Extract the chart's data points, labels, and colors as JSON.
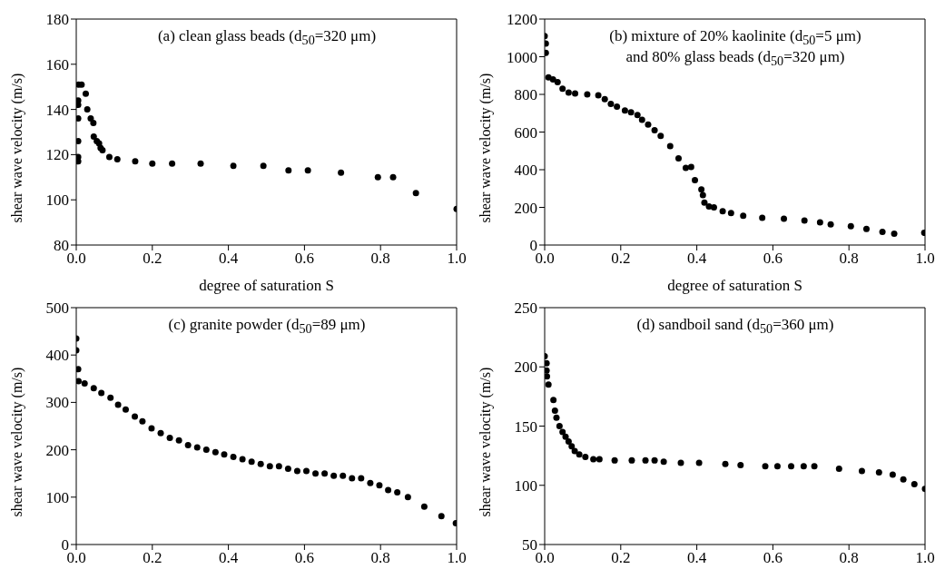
{
  "chart_data": [
    {
      "type": "scatter",
      "ylabel": "shear wave velocity (m/s)",
      "xlabel": "degree of saturation S",
      "annotations": [
        "(a) clean glass beads (d$_{50}$=320 μm)"
      ],
      "color": "#000000",
      "marker": "circle",
      "x": [
        0.006,
        0.014,
        0.005,
        0.005,
        0.005,
        0.005,
        0.005,
        0.005,
        0.025,
        0.029,
        0.038,
        0.045,
        0.046,
        0.054,
        0.06,
        0.064,
        0.069,
        0.087,
        0.108,
        0.155,
        0.2,
        0.252,
        0.327,
        0.413,
        0.492,
        0.558,
        0.609,
        0.696,
        0.793,
        0.833,
        0.893,
        1.0
      ],
      "values": [
        151,
        151,
        144,
        142,
        136,
        126,
        117,
        119,
        147,
        140,
        136,
        134,
        128,
        126,
        125,
        123,
        122,
        119,
        118,
        117,
        116,
        116,
        116,
        115,
        115,
        113,
        113,
        112,
        110,
        110,
        103,
        96
      ],
      "xlim": [
        0,
        1
      ],
      "xticks": [
        {
          "value": 0,
          "label": "0.0"
        },
        {
          "value": 0.2,
          "label": "0.2"
        },
        {
          "value": 0.4,
          "label": "0.4"
        },
        {
          "value": 0.6,
          "label": "0.6"
        },
        {
          "value": 0.8,
          "label": "0.8"
        },
        {
          "value": 1,
          "label": "1.0"
        }
      ],
      "ylim": [
        80,
        180
      ],
      "yticks": [
        80,
        100,
        120,
        140,
        160,
        180
      ]
    },
    {
      "type": "scatter",
      "ylabel": "shear wave velocity (m/s)",
      "xlabel": "degree of saturation S",
      "annotations": [
        "(b) mixture of 20% kaolinite (d$_{50}$=5 μm)\nand 80% glass beads (d$_{50}$=320 μm)"
      ],
      "color": "#000000",
      "marker": "circle",
      "x": [
        0,
        0.003,
        0.003,
        0.01,
        0.022,
        0.034,
        0.047,
        0.063,
        0.08,
        0.112,
        0.141,
        0.158,
        0.174,
        0.19,
        0.211,
        0.227,
        0.244,
        0.256,
        0.272,
        0.289,
        0.305,
        0.33,
        0.352,
        0.371,
        0.385,
        0.395,
        0.412,
        0.416,
        0.42,
        0.432,
        0.445,
        0.468,
        0.49,
        0.522,
        0.572,
        0.629,
        0.683,
        0.724,
        0.752,
        0.805,
        0.846,
        0.888,
        0.919,
        0.998
      ],
      "values": [
        1110,
        1070,
        1020,
        890,
        880,
        865,
        830,
        810,
        805,
        800,
        795,
        775,
        750,
        735,
        715,
        705,
        690,
        665,
        640,
        610,
        580,
        525,
        460,
        410,
        415,
        345,
        295,
        265,
        225,
        205,
        200,
        180,
        170,
        155,
        145,
        140,
        130,
        120,
        110,
        100,
        85,
        70,
        60,
        65
      ],
      "xlim": [
        0,
        1
      ],
      "xticks": [
        {
          "value": 0,
          "label": "0.0"
        },
        {
          "value": 0.2,
          "label": "0.2"
        },
        {
          "value": 0.4,
          "label": "0.4"
        },
        {
          "value": 0.6,
          "label": "0.6"
        },
        {
          "value": 0.8,
          "label": "0.8"
        },
        {
          "value": 1,
          "label": "1.0"
        }
      ],
      "ylim": [
        0,
        1200
      ],
      "yticks": [
        0,
        200,
        400,
        600,
        800,
        1000,
        1200
      ]
    },
    {
      "type": "scatter",
      "ylabel": "shear wave velocity (m/s)",
      "annotations": [
        "(c) granite powder (d$_{50}$=89 μm)"
      ],
      "color": "#000000",
      "marker": "circle",
      "x": [
        0,
        0,
        0.005,
        0.006,
        0.022,
        0.046,
        0.066,
        0.09,
        0.11,
        0.13,
        0.154,
        0.174,
        0.198,
        0.222,
        0.246,
        0.27,
        0.294,
        0.318,
        0.342,
        0.366,
        0.389,
        0.413,
        0.437,
        0.461,
        0.485,
        0.509,
        0.533,
        0.557,
        0.581,
        0.605,
        0.629,
        0.653,
        0.677,
        0.701,
        0.725,
        0.749,
        0.773,
        0.797,
        0.82,
        0.844,
        0.872,
        0.915,
        0.96,
        0.998
      ],
      "values": [
        435,
        410,
        370,
        345,
        340,
        330,
        320,
        310,
        295,
        285,
        270,
        260,
        245,
        235,
        225,
        220,
        210,
        205,
        200,
        195,
        190,
        185,
        180,
        175,
        170,
        165,
        165,
        160,
        155,
        155,
        150,
        150,
        145,
        145,
        140,
        140,
        130,
        125,
        115,
        110,
        100,
        80,
        60,
        45
      ],
      "xlim": [
        0,
        1
      ],
      "xticks": [
        {
          "value": 0,
          "label": "0.0"
        },
        {
          "value": 0.2,
          "label": "0.2"
        },
        {
          "value": 0.4,
          "label": "0.4"
        },
        {
          "value": 0.6,
          "label": "0.6"
        },
        {
          "value": 0.8,
          "label": "0.8"
        },
        {
          "value": 1,
          "label": "1.0"
        }
      ],
      "ylim": [
        0,
        500
      ],
      "yticks": [
        0,
        100,
        200,
        300,
        400,
        500
      ]
    },
    {
      "type": "scatter",
      "ylabel": "shear wave velocity (m/s)",
      "annotations": [
        "(d) sandboil sand (d$_{50}$=360 μm)"
      ],
      "color": "#000000",
      "marker": "circle",
      "x": [
        0,
        0.005,
        0.005,
        0.006,
        0.01,
        0.023,
        0.027,
        0.031,
        0.039,
        0.047,
        0.055,
        0.063,
        0.071,
        0.079,
        0.091,
        0.107,
        0.128,
        0.144,
        0.184,
        0.229,
        0.265,
        0.289,
        0.313,
        0.358,
        0.406,
        0.475,
        0.515,
        0.58,
        0.612,
        0.648,
        0.681,
        0.709,
        0.774,
        0.834,
        0.879,
        0.915,
        0.943,
        0.972,
        1.0
      ],
      "values": [
        209,
        203,
        197,
        192,
        185,
        172,
        163,
        157,
        150,
        145,
        141,
        137,
        133,
        129,
        126,
        124,
        122,
        122,
        121,
        121,
        121,
        121,
        120,
        119,
        119,
        118,
        117,
        116,
        116,
        116,
        116,
        116,
        114,
        112,
        111,
        109,
        105,
        101,
        97
      ],
      "xlim": [
        0,
        1
      ],
      "xticks": [
        {
          "value": 0,
          "label": "0.0"
        },
        {
          "value": 0.2,
          "label": "0.2"
        },
        {
          "value": 0.4,
          "label": "0.4"
        },
        {
          "value": 0.6,
          "label": "0.6"
        },
        {
          "value": 0.8,
          "label": "0.8"
        },
        {
          "value": 1,
          "label": "1.0"
        }
      ],
      "ylim": [
        50,
        250
      ],
      "yticks": [
        50,
        100,
        150,
        200,
        250
      ]
    }
  ]
}
